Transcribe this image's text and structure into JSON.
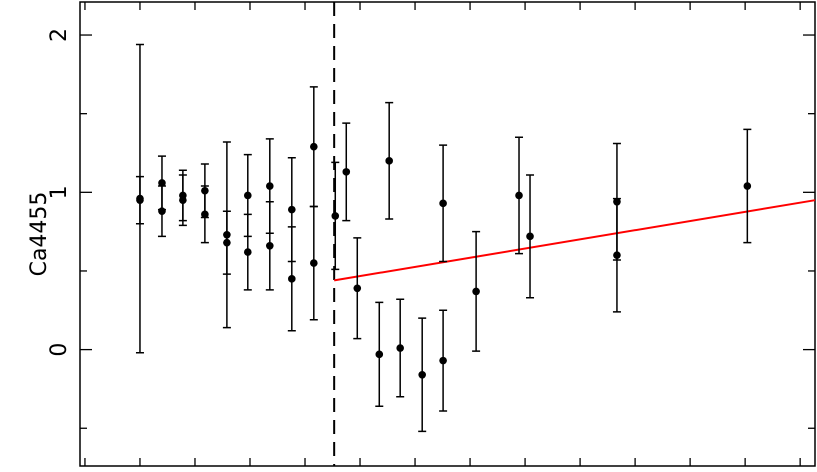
{
  "chart_data": {
    "type": "scatter",
    "ylabel": "Ca4455",
    "x": [
      1.0,
      1.0,
      1.4,
      1.4,
      1.78,
      1.78,
      2.18,
      2.18,
      2.58,
      2.58,
      2.96,
      2.96,
      3.36,
      3.36,
      3.76,
      3.76,
      4.16,
      4.16,
      4.55,
      4.75,
      4.95,
      5.35,
      5.53,
      5.73,
      6.13,
      6.51,
      6.51,
      7.11,
      7.89,
      8.09,
      9.67,
      9.67,
      12.04
    ],
    "values": [
      0.95,
      0.96,
      1.06,
      0.88,
      0.98,
      0.95,
      1.01,
      0.86,
      0.73,
      0.68,
      0.98,
      0.62,
      1.04,
      0.66,
      0.89,
      0.45,
      1.29,
      0.55,
      0.85,
      1.13,
      0.39,
      -0.03,
      1.2,
      0.01,
      -0.16,
      0.93,
      -0.07,
      0.37,
      0.98,
      0.72,
      0.94,
      0.6,
      1.04
    ],
    "errors": [
      0.15,
      0.98,
      0.17,
      0.16,
      0.16,
      0.16,
      0.17,
      0.18,
      0.59,
      0.2,
      0.26,
      0.24,
      0.3,
      0.28,
      0.33,
      0.33,
      0.38,
      0.36,
      0.34,
      0.31,
      0.32,
      0.33,
      0.37,
      0.31,
      0.36,
      0.37,
      0.32,
      0.38,
      0.37,
      0.39,
      0.37,
      0.36,
      0.36
    ],
    "color": "#000000",
    "fit_line": {
      "x": [
        4.53,
        13.27
      ],
      "values": [
        0.44,
        0.95
      ],
      "color": "#ff0000"
    },
    "vline": 4.53,
    "xlim": [
      -0.09,
      13.27
    ],
    "ylim": [
      -0.74,
      2.21
    ],
    "yticks": [
      0,
      1,
      2
    ],
    "yminorticks": [
      -0.5,
      0.5,
      1.5
    ],
    "xminorticks": [
      0,
      1,
      2,
      3,
      4,
      5,
      6,
      7,
      8,
      9,
      10,
      11,
      12,
      13
    ]
  }
}
